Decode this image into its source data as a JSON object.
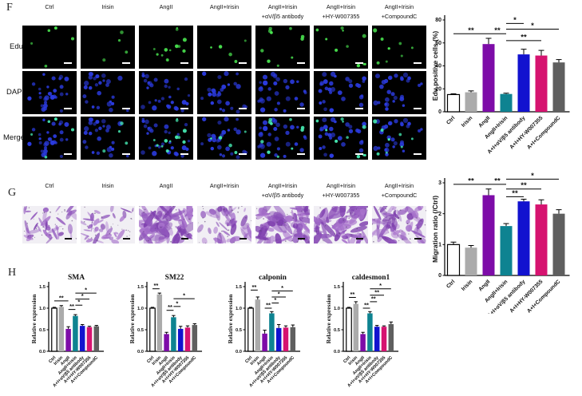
{
  "figure": {
    "panel_f_label": "F",
    "panel_g_label": "G",
    "panel_h_label": "H"
  },
  "colors": {
    "bar_palette": [
      "#ffffff",
      "#ababab",
      "#7d0ca8",
      "#0e8391",
      "#1212cf",
      "#d61370",
      "#5f5f5f"
    ],
    "edu_dot": "#49e34f",
    "dapi_dot": "#2b3be0",
    "merge_green": "#45e8b0",
    "micrograph_bg": "#000000",
    "transwell_bg": "#f1eff4",
    "transwell_cells": [
      "#a873cc",
      "#9157bd",
      "#7e3fae"
    ]
  },
  "column_headers": [
    {
      "line1": "",
      "line2": "Ctrl"
    },
    {
      "line1": "",
      "line2": "Irisin"
    },
    {
      "line1": "",
      "line2": "AngII"
    },
    {
      "line1": "",
      "line2": "AngII+Irisin"
    },
    {
      "line1": "AngII+Irisin",
      "line2": "+αV/β5 antibody"
    },
    {
      "line1": "AngII+Irisin",
      "line2": "+HY-W007355"
    },
    {
      "line1": "AngII+Irisin",
      "line2": "+CompoundC"
    }
  ],
  "panel_f": {
    "row_labels": [
      "Edu",
      "DAPI",
      "Merge"
    ],
    "tiles": [
      {
        "edu_dots": 5,
        "dapi_dots": 28
      },
      {
        "edu_dots": 4,
        "dapi_dots": 26
      },
      {
        "edu_dots": 13,
        "dapi_dots": 30
      },
      {
        "edu_dots": 5,
        "dapi_dots": 27
      },
      {
        "edu_dots": 10,
        "dapi_dots": 29
      },
      {
        "edu_dots": 10,
        "dapi_dots": 28
      },
      {
        "edu_dots": 8,
        "dapi_dots": 27
      }
    ]
  },
  "panel_g": {
    "tiles": [
      {
        "density": 0.35
      },
      {
        "density": 0.3
      },
      {
        "density": 0.95
      },
      {
        "density": 0.45
      },
      {
        "density": 0.9
      },
      {
        "density": 0.85
      },
      {
        "density": 0.7
      }
    ]
  },
  "chart_data": [
    {
      "id": "edu",
      "type": "bar",
      "title": "",
      "ylabel": "Edu positive cells (%)",
      "xlabel": "",
      "categories": [
        "Ctrl",
        "Irisin",
        "AngII",
        "AngII+Irisin",
        "A+I+αV/β5 antibody",
        "A+I+HY-W007355",
        "A+I+CompoundC"
      ],
      "values": [
        15,
        17,
        59,
        15.5,
        50,
        49,
        43
      ],
      "errors": [
        0.7,
        1.2,
        5,
        0.7,
        4.5,
        4.5,
        2.5
      ],
      "ylim": [
        0,
        80
      ],
      "yticks": [
        0,
        20,
        40,
        60,
        80
      ],
      "ytick_labels": [
        "0",
        "20",
        "40",
        "60",
        "80"
      ],
      "significance": [
        {
          "from": 0,
          "to": 2,
          "label": "**",
          "y": 68
        },
        {
          "from": 2,
          "to": 3,
          "label": "**",
          "y": 68
        },
        {
          "from": 3,
          "to": 4,
          "label": "*",
          "y": 77
        },
        {
          "from": 3,
          "to": 5,
          "label": "**",
          "y": 62
        },
        {
          "from": 3,
          "to": 6,
          "label": "*",
          "y": 72
        }
      ]
    },
    {
      "id": "migration",
      "type": "bar",
      "title": "",
      "ylabel": "Migration ratio (/Ctrl)",
      "xlabel": "",
      "categories": [
        "Ctrl",
        "Irisin",
        "AngII",
        "AngII+Irisin",
        "A+I+αV/β5 antibody",
        "A+I+HY-W007355",
        "A+I+CompoundC"
      ],
      "values": [
        1.0,
        0.9,
        2.6,
        1.6,
        2.4,
        2.3,
        2.0
      ],
      "errors": [
        0.08,
        0.07,
        0.2,
        0.08,
        0.07,
        0.15,
        0.13
      ],
      "ylim": [
        0,
        3
      ],
      "yticks": [
        0,
        1,
        2,
        3
      ],
      "ytick_labels": [
        "0",
        "1",
        "2",
        "3"
      ],
      "significance": [
        {
          "from": 0,
          "to": 2,
          "label": "**",
          "y": 2.95
        },
        {
          "from": 2,
          "to": 3,
          "label": "**",
          "y": 2.95
        },
        {
          "from": 3,
          "to": 4,
          "label": "**",
          "y": 2.55
        },
        {
          "from": 3,
          "to": 5,
          "label": "**",
          "y": 2.8
        },
        {
          "from": 3,
          "to": 6,
          "label": "*",
          "y": 3.12
        }
      ]
    },
    {
      "id": "sma",
      "type": "bar",
      "title": "SMA",
      "ylabel": "Relative expression",
      "xlabel": "",
      "categories": [
        "Ctrl",
        "Irisin",
        "AngII",
        "AngII+Irisin",
        "A+I+αV/β5 antibody",
        "A+I+HY-W007355",
        "A+I+CompoundC"
      ],
      "values": [
        1.0,
        1.03,
        0.52,
        0.82,
        0.59,
        0.56,
        0.58
      ],
      "errors": [
        0.02,
        0.03,
        0.05,
        0.03,
        0.03,
        0.02,
        0.02
      ],
      "ylim": [
        0,
        1.5
      ],
      "yticks": [
        0,
        0.5,
        1.0,
        1.5
      ],
      "ytick_labels": [
        "0.0",
        "0.5",
        "1.0",
        "1.5"
      ],
      "significance": [
        {
          "from": 0,
          "to": 2,
          "label": "**",
          "y": 1.17
        },
        {
          "from": 2,
          "to": 3,
          "label": "**",
          "y": 0.97
        },
        {
          "from": 3,
          "to": 4,
          "label": "*",
          "y": 1.07
        },
        {
          "from": 3,
          "to": 5,
          "label": "*",
          "y": 1.21
        },
        {
          "from": 3,
          "to": 6,
          "label": "*",
          "y": 1.35
        }
      ]
    },
    {
      "id": "sm22",
      "type": "bar",
      "title": "SM22",
      "ylabel": "Relative expression",
      "xlabel": "",
      "categories": [
        "Ctrl",
        "Irisin",
        "AngII",
        "AngII+Irisin",
        "A+I+αV/β5 antibody",
        "A+I+HY-W007355",
        "A+I+CompoundC"
      ],
      "values": [
        1.0,
        1.32,
        0.4,
        0.79,
        0.52,
        0.55,
        0.61
      ],
      "errors": [
        0.02,
        0.03,
        0.04,
        0.04,
        0.06,
        0.04,
        0.03
      ],
      "ylim": [
        0,
        1.5
      ],
      "yticks": [
        0,
        0.5,
        1.0,
        1.5
      ],
      "ytick_labels": [
        "0.0",
        "0.5",
        "1.0",
        "1.5"
      ],
      "significance": [
        {
          "from": 0,
          "to": 1,
          "label": "**",
          "y": 1.45
        },
        {
          "from": 2,
          "to": 3,
          "label": "**",
          "y": 0.95
        },
        {
          "from": 3,
          "to": 4,
          "label": "*",
          "y": 1.04
        },
        {
          "from": 3,
          "to": 6,
          "label": "*",
          "y": 1.22
        }
      ]
    },
    {
      "id": "calponin",
      "type": "bar",
      "title": "calponin",
      "ylabel": "Relative expression",
      "xlabel": "",
      "categories": [
        "Ctrl",
        "Irisin",
        "AngII",
        "AngII+Irisin",
        "A+I+αV/β5 antibody",
        "A+I+HY-W007355",
        "A+I+CompoundC"
      ],
      "values": [
        1.0,
        1.2,
        0.41,
        0.88,
        0.54,
        0.55,
        0.56
      ],
      "errors": [
        0.02,
        0.06,
        0.08,
        0.04,
        0.08,
        0.04,
        0.05
      ],
      "ylim": [
        0,
        1.5
      ],
      "yticks": [
        0,
        0.5,
        1.0,
        1.5
      ],
      "ytick_labels": [
        "0.0",
        "0.5",
        "1.0",
        "1.5"
      ],
      "significance": [
        {
          "from": 0,
          "to": 1,
          "label": "**",
          "y": 1.42
        },
        {
          "from": 2,
          "to": 3,
          "label": "**",
          "y": 1.0
        },
        {
          "from": 3,
          "to": 4,
          "label": "*",
          "y": 1.12
        },
        {
          "from": 3,
          "to": 5,
          "label": "*",
          "y": 1.26
        },
        {
          "from": 3,
          "to": 6,
          "label": "*",
          "y": 1.4
        }
      ]
    },
    {
      "id": "caldesmon1",
      "type": "bar",
      "title": "caldesmon1",
      "ylabel": "Relative expression",
      "xlabel": "",
      "categories": [
        "Ctrl",
        "Irisin",
        "AngII",
        "AngII+Irisin",
        "A+I+αV/β5 antibody",
        "A+I+HY-W007355",
        "A+I+CompoundC"
      ],
      "values": [
        1.0,
        1.1,
        0.4,
        0.88,
        0.57,
        0.57,
        0.63
      ],
      "errors": [
        0.02,
        0.05,
        0.04,
        0.04,
        0.03,
        0.02,
        0.05
      ],
      "ylim": [
        0,
        1.5
      ],
      "yticks": [
        0,
        0.5,
        1.0,
        1.5
      ],
      "ytick_labels": [
        "0.0",
        "0.5",
        "1.0",
        "1.5"
      ],
      "significance": [
        {
          "from": 0,
          "to": 1,
          "label": "**",
          "y": 1.25
        },
        {
          "from": 2,
          "to": 3,
          "label": "**",
          "y": 1.0
        },
        {
          "from": 3,
          "to": 4,
          "label": "**",
          "y": 1.15
        },
        {
          "from": 3,
          "to": 5,
          "label": "**",
          "y": 1.3
        },
        {
          "from": 3,
          "to": 6,
          "label": "*",
          "y": 1.45
        }
      ]
    }
  ]
}
